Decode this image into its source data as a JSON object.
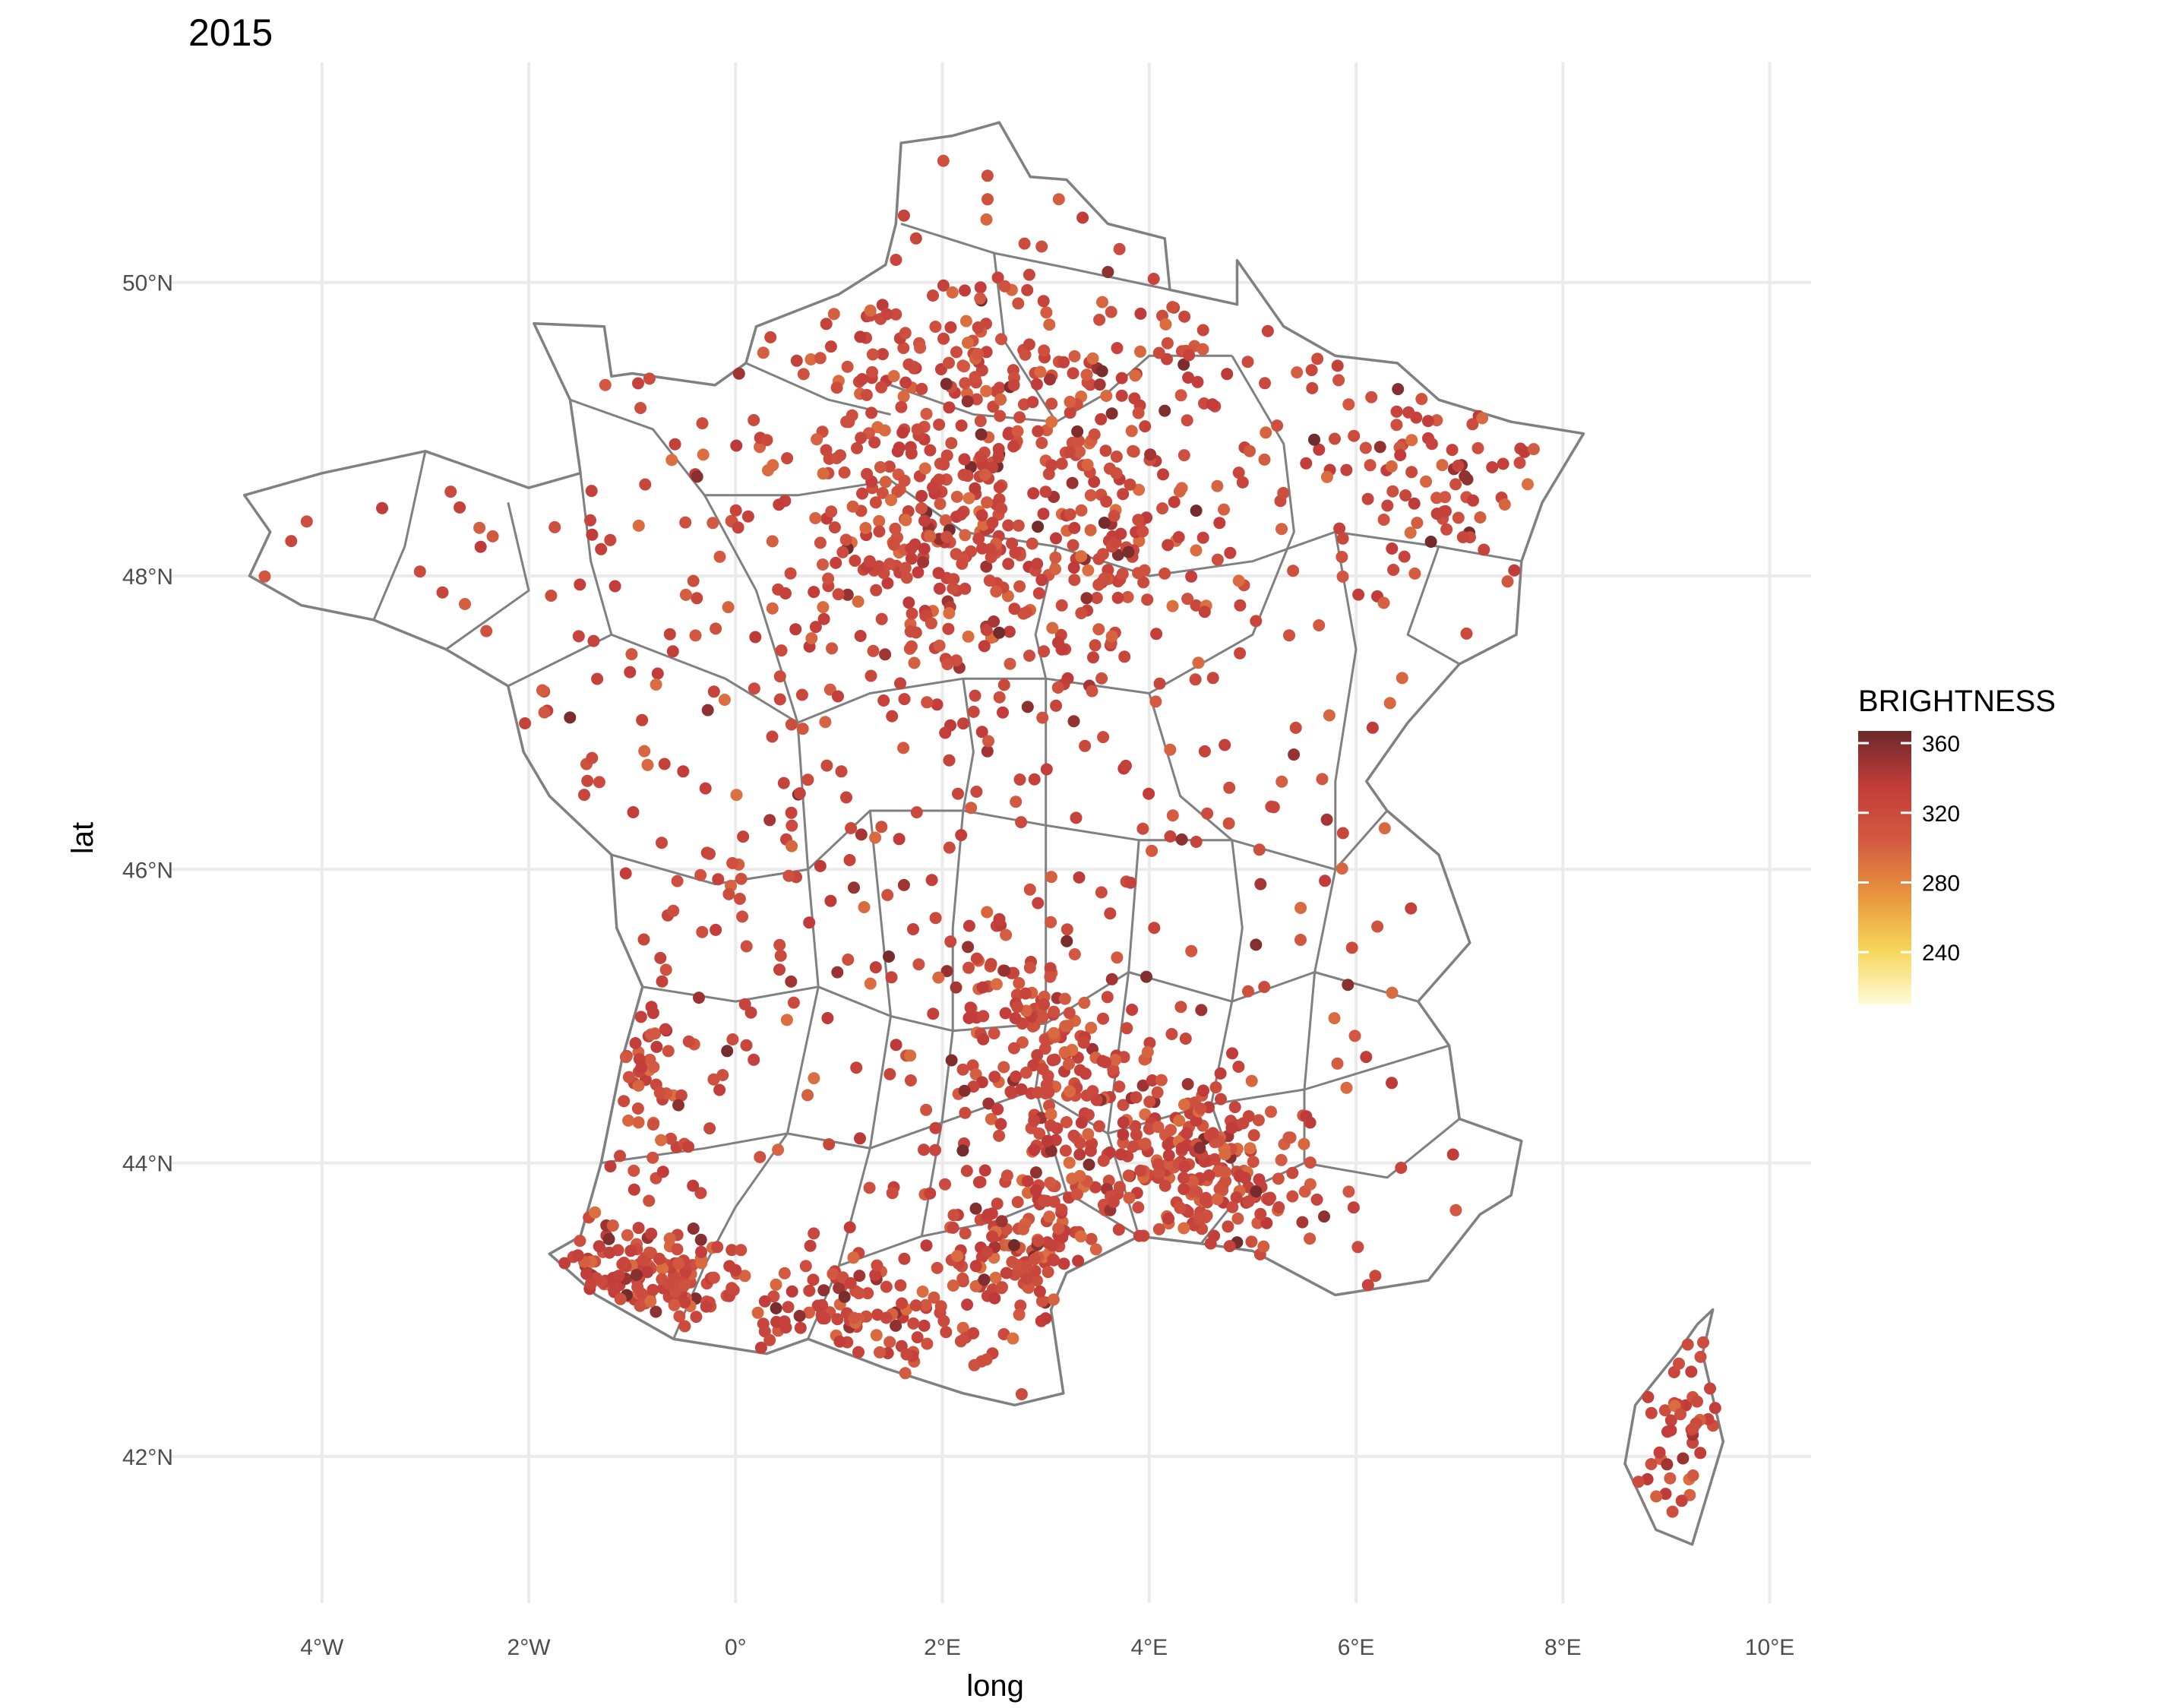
{
  "chart_data": {
    "type": "scatter",
    "title": "2015",
    "xlabel": "long",
    "ylabel": "lat",
    "xlim": [
      -5.6,
      10.4
    ],
    "ylim": [
      41.0,
      51.5
    ],
    "x_ticks": [
      {
        "value": -4,
        "label": "4°W"
      },
      {
        "value": -2,
        "label": "2°W"
      },
      {
        "value": 0,
        "label": "0°"
      },
      {
        "value": 2,
        "label": "2°E"
      },
      {
        "value": 4,
        "label": "4°E"
      },
      {
        "value": 6,
        "label": "6°E"
      },
      {
        "value": 8,
        "label": "8°E"
      },
      {
        "value": 10,
        "label": "10°E"
      }
    ],
    "y_ticks": [
      {
        "value": 42,
        "label": "42°N"
      },
      {
        "value": 44,
        "label": "44°N"
      },
      {
        "value": 46,
        "label": "46°N"
      },
      {
        "value": 48,
        "label": "48°N"
      },
      {
        "value": 50,
        "label": "50°N"
      }
    ],
    "grid": true,
    "legend": {
      "title": "BRIGHTNESS",
      "placement": "right",
      "range": [
        210,
        367
      ],
      "breaks": [
        {
          "value": 360,
          "label": "360"
        },
        {
          "value": 320,
          "label": "320"
        },
        {
          "value": 280,
          "label": "280"
        },
        {
          "value": 240,
          "label": "240"
        }
      ],
      "colors": [
        "#fffbd9",
        "#f6d65a",
        "#e8943e",
        "#d35a41",
        "#c23c3a",
        "#6b2a2a"
      ]
    },
    "outline_color": "#808080",
    "outlines": {
      "mainland": [
        [
          2.55,
          51.09
        ],
        [
          2.1,
          51.0
        ],
        [
          1.6,
          50.95
        ],
        [
          1.55,
          50.4
        ],
        [
          1.45,
          50.12
        ],
        [
          1.0,
          49.92
        ],
        [
          0.2,
          49.7
        ],
        [
          0.1,
          49.45
        ],
        [
          -0.2,
          49.3
        ],
        [
          -1.0,
          49.38
        ],
        [
          -1.2,
          49.36
        ],
        [
          -1.27,
          49.7
        ],
        [
          -1.95,
          49.72
        ],
        [
          -1.6,
          49.2
        ],
        [
          -1.5,
          48.7
        ],
        [
          -2.0,
          48.6
        ],
        [
          -3.0,
          48.85
        ],
        [
          -4.0,
          48.7
        ],
        [
          -4.75,
          48.55
        ],
        [
          -4.5,
          48.3
        ],
        [
          -4.7,
          48.0
        ],
        [
          -4.2,
          47.8
        ],
        [
          -3.5,
          47.7
        ],
        [
          -2.8,
          47.5
        ],
        [
          -2.2,
          47.25
        ],
        [
          -2.05,
          46.8
        ],
        [
          -1.8,
          46.5
        ],
        [
          -1.2,
          46.1
        ],
        [
          -1.15,
          45.6
        ],
        [
          -0.9,
          45.2
        ],
        [
          -1.1,
          44.7
        ],
        [
          -1.3,
          44.0
        ],
        [
          -1.5,
          43.5
        ],
        [
          -1.8,
          43.38
        ],
        [
          -1.35,
          43.1
        ],
        [
          -0.6,
          42.8
        ],
        [
          0.3,
          42.7
        ],
        [
          0.7,
          42.8
        ],
        [
          1.45,
          42.6
        ],
        [
          2.2,
          42.43
        ],
        [
          2.7,
          42.35
        ],
        [
          3.17,
          42.43
        ],
        [
          3.05,
          43.0
        ],
        [
          3.2,
          43.25
        ],
        [
          3.9,
          43.5
        ],
        [
          4.5,
          43.45
        ],
        [
          5.0,
          43.4
        ],
        [
          5.8,
          43.1
        ],
        [
          6.7,
          43.2
        ],
        [
          7.2,
          43.65
        ],
        [
          7.5,
          43.78
        ],
        [
          7.6,
          44.15
        ],
        [
          7.0,
          44.3
        ],
        [
          6.9,
          44.8
        ],
        [
          6.6,
          45.1
        ],
        [
          7.1,
          45.5
        ],
        [
          6.8,
          46.1
        ],
        [
          6.3,
          46.4
        ],
        [
          6.1,
          46.6
        ],
        [
          6.5,
          47.0
        ],
        [
          7.0,
          47.4
        ],
        [
          7.55,
          47.6
        ],
        [
          7.6,
          48.1
        ],
        [
          7.8,
          48.5
        ],
        [
          8.2,
          48.97
        ],
        [
          7.5,
          49.05
        ],
        [
          6.8,
          49.2
        ],
        [
          6.4,
          49.45
        ],
        [
          5.8,
          49.5
        ],
        [
          5.3,
          49.7
        ],
        [
          4.85,
          50.15
        ],
        [
          4.85,
          49.85
        ],
        [
          4.2,
          49.95
        ],
        [
          4.15,
          50.3
        ],
        [
          3.6,
          50.4
        ],
        [
          3.2,
          50.7
        ],
        [
          2.85,
          50.72
        ],
        [
          2.55,
          51.09
        ]
      ],
      "corsica": [
        [
          9.45,
          43.0
        ],
        [
          9.35,
          42.7
        ],
        [
          9.55,
          42.1
        ],
        [
          9.25,
          41.4
        ],
        [
          8.9,
          41.5
        ],
        [
          8.6,
          41.95
        ],
        [
          8.7,
          42.35
        ],
        [
          9.1,
          42.7
        ],
        [
          9.3,
          42.9
        ],
        [
          9.45,
          43.0
        ]
      ],
      "internal": [
        [
          [
            1.6,
            50.4
          ],
          [
            2.5,
            50.2
          ],
          [
            3.2,
            50.1
          ],
          [
            4.2,
            49.95
          ]
        ],
        [
          [
            1.5,
            49.3
          ],
          [
            2.3,
            49.1
          ],
          [
            3.1,
            49.05
          ],
          [
            3.6,
            49.25
          ],
          [
            4.0,
            49.5
          ],
          [
            4.8,
            49.5
          ]
        ],
        [
          [
            0.1,
            49.45
          ],
          [
            0.9,
            49.2
          ],
          [
            1.5,
            49.1
          ]
        ],
        [
          [
            -1.6,
            49.2
          ],
          [
            -0.8,
            49.0
          ],
          [
            -0.3,
            48.55
          ],
          [
            0.6,
            48.55
          ],
          [
            1.5,
            48.65
          ]
        ],
        [
          [
            -1.5,
            48.7
          ],
          [
            -1.4,
            48.1
          ],
          [
            -1.2,
            47.6
          ],
          [
            -2.2,
            47.25
          ]
        ],
        [
          [
            -1.2,
            47.6
          ],
          [
            -0.1,
            47.3
          ],
          [
            0.6,
            47.0
          ],
          [
            1.3,
            47.2
          ],
          [
            2.2,
            47.3
          ],
          [
            3.0,
            47.3
          ],
          [
            4.0,
            47.2
          ]
        ],
        [
          [
            1.5,
            48.65
          ],
          [
            2.2,
            48.3
          ],
          [
            3.1,
            48.2
          ],
          [
            4.0,
            48.0
          ],
          [
            5.0,
            48.1
          ],
          [
            5.8,
            48.3
          ],
          [
            6.8,
            48.2
          ],
          [
            7.6,
            48.1
          ]
        ],
        [
          [
            4.8,
            49.5
          ],
          [
            5.3,
            48.9
          ],
          [
            5.4,
            48.3
          ],
          [
            5.0,
            47.6
          ],
          [
            4.0,
            47.2
          ]
        ],
        [
          [
            4.0,
            47.2
          ],
          [
            4.3,
            46.5
          ],
          [
            4.8,
            46.2
          ],
          [
            5.8,
            46.0
          ],
          [
            6.3,
            46.4
          ]
        ],
        [
          [
            -1.2,
            46.1
          ],
          [
            -0.2,
            45.9
          ],
          [
            0.7,
            46.0
          ],
          [
            1.3,
            46.4
          ],
          [
            2.2,
            46.4
          ],
          [
            3.0,
            46.3
          ],
          [
            3.9,
            46.2
          ],
          [
            4.8,
            46.2
          ]
        ],
        [
          [
            -0.9,
            45.2
          ],
          [
            0.0,
            45.1
          ],
          [
            0.8,
            45.2
          ],
          [
            1.5,
            45.0
          ],
          [
            2.1,
            44.9
          ],
          [
            3.0,
            44.95
          ],
          [
            3.8,
            45.3
          ],
          [
            4.8,
            45.1
          ],
          [
            5.6,
            45.3
          ],
          [
            6.6,
            45.1
          ]
        ],
        [
          [
            -1.3,
            44.0
          ],
          [
            -0.3,
            44.1
          ],
          [
            0.5,
            44.2
          ],
          [
            1.3,
            44.1
          ],
          [
            2.1,
            44.3
          ],
          [
            2.9,
            44.5
          ],
          [
            3.6,
            44.2
          ],
          [
            4.6,
            44.4
          ],
          [
            5.5,
            44.5
          ],
          [
            6.9,
            44.8
          ]
        ],
        [
          [
            0.7,
            42.8
          ],
          [
            1.0,
            43.3
          ],
          [
            1.8,
            43.5
          ],
          [
            2.5,
            43.6
          ],
          [
            3.2,
            43.8
          ],
          [
            3.9,
            43.5
          ]
        ],
        [
          [
            4.5,
            43.45
          ],
          [
            4.9,
            43.8
          ],
          [
            5.5,
            44.0
          ],
          [
            6.3,
            43.9
          ],
          [
            7.0,
            44.3
          ]
        ],
        [
          [
            2.5,
            50.2
          ],
          [
            2.6,
            49.6
          ],
          [
            3.1,
            49.05
          ]
        ],
        [
          [
            2.2,
            47.3
          ],
          [
            2.3,
            46.8
          ],
          [
            2.2,
            46.4
          ],
          [
            2.1,
            45.6
          ],
          [
            2.1,
            44.9
          ],
          [
            2.0,
            44.3
          ],
          [
            1.8,
            43.5
          ]
        ],
        [
          [
            -0.3,
            48.55
          ],
          [
            0.2,
            47.9
          ],
          [
            0.6,
            47.0
          ],
          [
            0.7,
            46.0
          ],
          [
            0.8,
            45.2
          ],
          [
            0.5,
            44.2
          ],
          [
            0.0,
            43.7
          ],
          [
            -0.3,
            43.3
          ],
          [
            -0.6,
            42.8
          ]
        ],
        [
          [
            3.1,
            48.2
          ],
          [
            2.9,
            47.6
          ],
          [
            3.0,
            47.3
          ],
          [
            3.0,
            46.3
          ],
          [
            3.0,
            44.95
          ],
          [
            2.9,
            44.5
          ],
          [
            3.2,
            43.8
          ]
        ],
        [
          [
            5.8,
            48.3
          ],
          [
            6.0,
            47.5
          ],
          [
            5.8,
            46.6
          ],
          [
            5.8,
            46.0
          ],
          [
            5.6,
            45.3
          ],
          [
            5.5,
            44.5
          ],
          [
            5.5,
            44.0
          ]
        ],
        [
          [
            6.8,
            48.2
          ],
          [
            6.5,
            47.6
          ],
          [
            7.0,
            47.4
          ]
        ],
        [
          [
            -3.0,
            48.85
          ],
          [
            -3.2,
            48.2
          ],
          [
            -3.5,
            47.7
          ]
        ],
        [
          [
            -2.2,
            48.5
          ],
          [
            -2.0,
            47.9
          ],
          [
            -2.8,
            47.5
          ]
        ],
        [
          [
            3.9,
            46.2
          ],
          [
            3.8,
            45.3
          ],
          [
            3.6,
            44.2
          ],
          [
            3.9,
            43.5
          ]
        ],
        [
          [
            4.8,
            46.2
          ],
          [
            4.9,
            45.6
          ],
          [
            4.8,
            45.1
          ],
          [
            4.6,
            44.4
          ],
          [
            4.9,
            43.8
          ]
        ],
        [
          [
            1.3,
            46.4
          ],
          [
            1.5,
            45.0
          ],
          [
            1.3,
            44.1
          ],
          [
            1.0,
            43.3
          ]
        ]
      ]
    },
    "palette_order_note": "",
    "points_generated": true
  }
}
